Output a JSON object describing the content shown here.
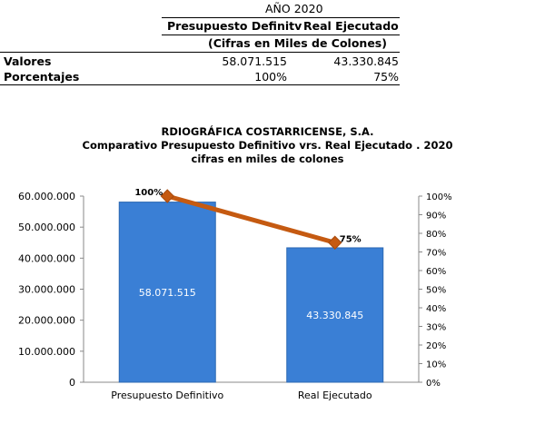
{
  "table": {
    "year_header": "AÑO 2020",
    "col1_header": "Presupuesto Definitv",
    "col2_header": "Real Ejecutado",
    "subtitle": "(Cifras en Miles de Colones)",
    "rows": [
      {
        "label": "Valores",
        "col1": "58.071.515",
        "col2": "43.330.845"
      },
      {
        "label": "Porcentajes",
        "col1": "100%",
        "col2": "75%"
      }
    ]
  },
  "chart_data": {
    "type": "bar",
    "title": "RDIOGRÁFICA COSTARRICENSE, S.A.",
    "subtitle": "Comparativo Presupuesto Definitivo vrs. Real Ejecutado . 2020",
    "subtitle2": "cifras en miles de colones",
    "categories": [
      "Presupuesto Definitivo",
      "Real Ejecutado"
    ],
    "series": [
      {
        "type": "bar",
        "values": [
          58071515,
          43330845
        ],
        "labels": [
          "58.071.515",
          "43.330.845"
        ],
        "axis": "left"
      },
      {
        "type": "line",
        "values": [
          100,
          75
        ],
        "labels": [
          "100%",
          "75%"
        ],
        "axis": "right"
      }
    ],
    "ylim": [
      0,
      60000000
    ],
    "yticks": [
      "0",
      "10.000.000",
      "20.000.000",
      "30.000.000",
      "40.000.000",
      "50.000.000",
      "60.000.000"
    ],
    "y2lim": [
      0,
      100
    ],
    "y2ticks": [
      "0%",
      "10%",
      "20%",
      "30%",
      "40%",
      "50%",
      "60%",
      "70%",
      "80%",
      "90%",
      "100%"
    ],
    "colors": {
      "bar": "#3a7fd5",
      "line": "#c55a11",
      "marker": "#c55a11"
    }
  }
}
